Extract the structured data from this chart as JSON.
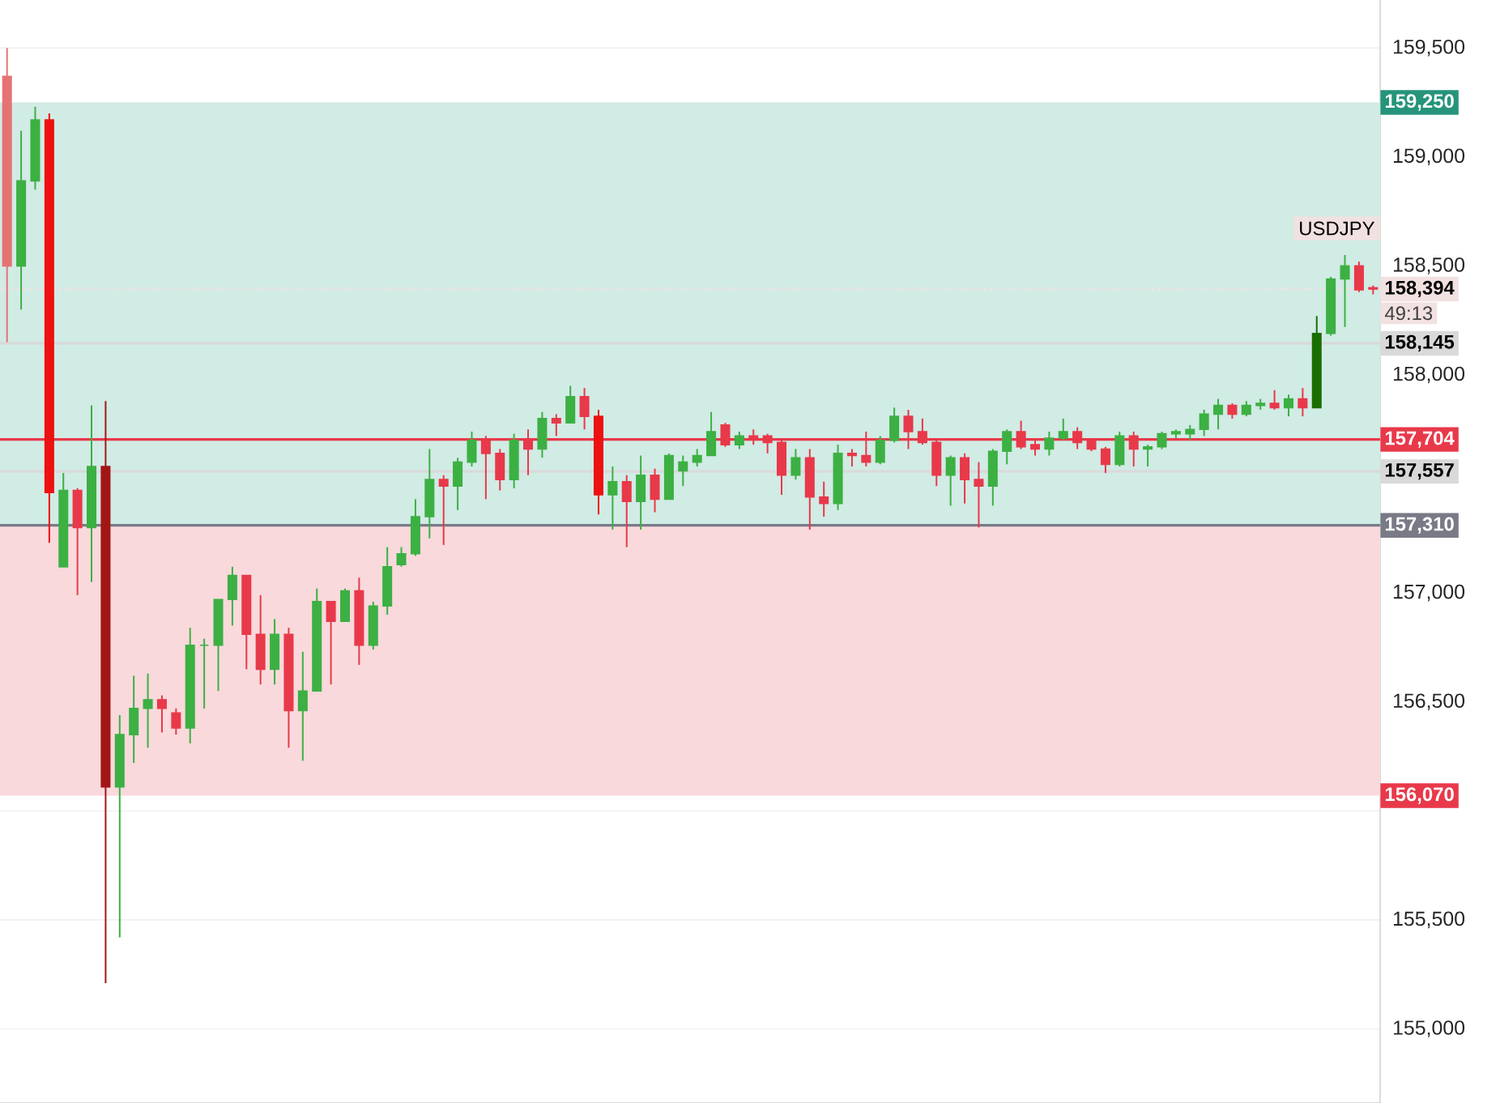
{
  "chart_data": {
    "type": "candlestick",
    "categories": [
      null,
      null,
      null,
      null,
      null,
      null,
      null,
      null,
      null,
      null,
      null,
      null,
      null,
      null,
      null,
      null,
      null,
      null,
      null,
      null,
      null,
      null,
      null,
      null,
      null,
      null,
      null,
      null,
      null,
      null,
      null,
      null,
      null,
      null,
      null,
      null,
      null,
      null,
      null,
      null,
      null,
      null,
      null,
      null,
      null,
      null,
      null,
      null,
      null,
      null,
      null,
      null,
      null,
      null,
      null,
      null,
      null,
      null,
      null,
      null,
      null,
      null,
      null,
      null,
      null,
      null,
      null,
      null,
      null,
      null,
      null,
      null,
      null,
      null,
      null,
      null,
      null,
      null,
      null,
      null,
      null,
      null,
      null,
      null,
      null,
      null,
      null,
      null,
      null,
      null,
      null,
      null,
      null,
      null,
      null,
      null,
      null,
      null
    ],
    "ohlc": [
      [
        159370,
        159500,
        158150,
        158500
      ],
      [
        158500,
        159120,
        158300,
        158890
      ],
      [
        158890,
        159230,
        158850,
        159170
      ],
      [
        159170,
        159200,
        157230,
        157460
      ],
      [
        157120,
        157550,
        157120,
        157470
      ],
      [
        157470,
        157480,
        156990,
        157300
      ],
      [
        157300,
        157860,
        157050,
        157580
      ],
      [
        157580,
        157880,
        155210,
        156110
      ],
      [
        156110,
        156440,
        155420,
        156350
      ],
      [
        156350,
        156620,
        156220,
        156470
      ],
      [
        156470,
        156630,
        156290,
        156510
      ],
      [
        156510,
        156530,
        156360,
        156470
      ],
      [
        156450,
        156470,
        156350,
        156380
      ],
      [
        156380,
        156840,
        156310,
        156760
      ],
      [
        156760,
        156790,
        156470,
        156760
      ],
      [
        156760,
        156970,
        156550,
        156970
      ],
      [
        156970,
        157120,
        156850,
        157080
      ],
      [
        157080,
        157080,
        156650,
        156810
      ],
      [
        156810,
        156990,
        156580,
        156650
      ],
      [
        156650,
        156880,
        156580,
        156810
      ],
      [
        156810,
        156840,
        156290,
        156460
      ],
      [
        156460,
        156730,
        156230,
        156550
      ],
      [
        156550,
        157020,
        156550,
        156960
      ],
      [
        156960,
        156960,
        156580,
        156870
      ],
      [
        156870,
        157020,
        156870,
        157010
      ],
      [
        157010,
        157070,
        156670,
        156760
      ],
      [
        156760,
        156960,
        156740,
        156940
      ],
      [
        156940,
        157210,
        156900,
        157120
      ],
      [
        157130,
        157210,
        157120,
        157180
      ],
      [
        157180,
        157430,
        157170,
        157350
      ],
      [
        157350,
        157660,
        157250,
        157520
      ],
      [
        157520,
        157540,
        157220,
        157490
      ],
      [
        157490,
        157620,
        157380,
        157600
      ],
      [
        157600,
        157740,
        157580,
        157700
      ],
      [
        157700,
        157720,
        157430,
        157640
      ],
      [
        157640,
        157660,
        157470,
        157520
      ],
      [
        157520,
        157730,
        157480,
        157700
      ],
      [
        157700,
        157750,
        157540,
        157660
      ],
      [
        157660,
        157830,
        157620,
        157800
      ],
      [
        157800,
        157820,
        157720,
        157780
      ],
      [
        157780,
        157950,
        157780,
        157900
      ],
      [
        157900,
        157940,
        157750,
        157810
      ],
      [
        157810,
        157840,
        157360,
        157450
      ],
      [
        157450,
        157580,
        157290,
        157510
      ],
      [
        157510,
        157540,
        157210,
        157420
      ],
      [
        157420,
        157630,
        157290,
        157540
      ],
      [
        157540,
        157570,
        157370,
        157430
      ],
      [
        157430,
        157640,
        157430,
        157630
      ],
      [
        157560,
        157630,
        157490,
        157600
      ],
      [
        157600,
        157660,
        157580,
        157630
      ],
      [
        157630,
        157830,
        157630,
        157740
      ],
      [
        157770,
        157780,
        157670,
        157680
      ],
      [
        157680,
        157740,
        157660,
        157720
      ],
      [
        157720,
        157750,
        157680,
        157710
      ],
      [
        157720,
        157730,
        157640,
        157690
      ],
      [
        157690,
        157710,
        157450,
        157540
      ],
      [
        157540,
        157660,
        157520,
        157620
      ],
      [
        157620,
        157660,
        157290,
        157440
      ],
      [
        157440,
        157510,
        157350,
        157410
      ],
      [
        157410,
        157680,
        157380,
        157640
      ],
      [
        157640,
        157660,
        157580,
        157630
      ],
      [
        157630,
        157740,
        157580,
        157600
      ],
      [
        157600,
        157720,
        157590,
        157700
      ],
      [
        157700,
        157850,
        157690,
        157810
      ],
      [
        157810,
        157840,
        157660,
        157740
      ],
      [
        157740,
        157800,
        157680,
        157690
      ],
      [
        157690,
        157700,
        157490,
        157540
      ],
      [
        157540,
        157630,
        157400,
        157620
      ],
      [
        157620,
        157640,
        157410,
        157520
      ],
      [
        157520,
        157600,
        157300,
        157490
      ],
      [
        157490,
        157660,
        157400,
        157650
      ],
      [
        157650,
        157750,
        157590,
        157740
      ],
      [
        157740,
        157790,
        157660,
        157670
      ],
      [
        157680,
        157710,
        157630,
        157660
      ],
      [
        157660,
        157740,
        157630,
        157710
      ],
      [
        157710,
        157800,
        157700,
        157740
      ],
      [
        157740,
        157760,
        157660,
        157690
      ],
      [
        157700,
        157710,
        157650,
        157660
      ],
      [
        157660,
        157670,
        157550,
        157590
      ],
      [
        157590,
        157740,
        157580,
        157720
      ],
      [
        157720,
        157740,
        157580,
        157660
      ],
      [
        157660,
        157680,
        157580,
        157670
      ],
      [
        157670,
        157740,
        157660,
        157730
      ],
      [
        157730,
        157750,
        157710,
        157740
      ],
      [
        157730,
        157770,
        157700,
        157750
      ],
      [
        157750,
        157840,
        157720,
        157820
      ],
      [
        157820,
        157890,
        157750,
        157860
      ],
      [
        157860,
        157870,
        157800,
        157820
      ],
      [
        157820,
        157880,
        157810,
        157860
      ],
      [
        157860,
        157890,
        157840,
        157870
      ],
      [
        157870,
        157930,
        157840,
        157850
      ],
      [
        157850,
        157910,
        157810,
        157890
      ],
      [
        157890,
        157940,
        157810,
        157850
      ],
      [
        157850,
        158270,
        157850,
        158190
      ],
      [
        158190,
        158450,
        158180,
        158440
      ],
      [
        158440,
        158550,
        158220,
        158500
      ],
      [
        158500,
        158520,
        158380,
        158390
      ],
      [
        158400,
        158410,
        158370,
        158394
      ]
    ],
    "colors": [
      "#e57373",
      "#3cb043",
      "#3cb043",
      "#ee1111",
      "#3cb043",
      "#e8394a",
      "#3cb043",
      "#a31616",
      "#3cb043",
      "#3cb043",
      "#3cb043",
      "#e8394a",
      "#e8394a",
      "#3cb043",
      "#3cb043",
      "#3cb043",
      "#3cb043",
      "#e8394a",
      "#e8394a",
      "#3cb043",
      "#e8394a",
      "#3cb043",
      "#3cb043",
      "#e8394a",
      "#3cb043",
      "#e8394a",
      "#3cb043",
      "#3cb043",
      "#3cb043",
      "#3cb043",
      "#3cb043",
      "#e8394a",
      "#3cb043",
      "#3cb043",
      "#e8394a",
      "#e8394a",
      "#3cb043",
      "#e8394a",
      "#3cb043",
      "#e8394a",
      "#3cb043",
      "#e8394a",
      "#ee1111",
      "#3cb043",
      "#e8394a",
      "#3cb043",
      "#e8394a",
      "#3cb043",
      "#3cb043",
      "#3cb043",
      "#3cb043",
      "#e8394a",
      "#3cb043",
      "#e8394a",
      "#e8394a",
      "#e8394a",
      "#3cb043",
      "#e8394a",
      "#e8394a",
      "#3cb043",
      "#e8394a",
      "#e8394a",
      "#3cb043",
      "#3cb043",
      "#e8394a",
      "#e8394a",
      "#e8394a",
      "#3cb043",
      "#e8394a",
      "#e8394a",
      "#3cb043",
      "#3cb043",
      "#e8394a",
      "#e8394a",
      "#3cb043",
      "#3cb043",
      "#e8394a",
      "#e8394a",
      "#e8394a",
      "#3cb043",
      "#e8394a",
      "#3cb043",
      "#3cb043",
      "#3cb043",
      "#3cb043",
      "#3cb043",
      "#3cb043",
      "#e8394a",
      "#3cb043",
      "#3cb043",
      "#e8394a",
      "#3cb043",
      "#e8394a",
      "#1a6e00",
      "#3cb043",
      "#3cb043",
      "#e8394a",
      "#e8394a"
    ],
    "ylim": [
      154660,
      159720
    ],
    "yticks": [
      {
        "value": 155000,
        "label": "155,000"
      },
      {
        "value": 155500,
        "label": "155,500"
      },
      {
        "value": 156000,
        "label": null
      },
      {
        "value": 156500,
        "label": "156,500"
      },
      {
        "value": 157000,
        "label": "157,000"
      },
      {
        "value": 157500,
        "label": null
      },
      {
        "value": 158000,
        "label": "158,000"
      },
      {
        "value": 158500,
        "label": "158,500"
      },
      {
        "value": 159000,
        "label": "159,000"
      },
      {
        "value": 159500,
        "label": "159,500"
      }
    ],
    "tick_labels": "y",
    "grid": "y",
    "bands": [
      {
        "axis": "y",
        "from": 157310,
        "to": 159250,
        "label": "159,250",
        "color": "#d1ebe5"
      },
      {
        "axis": "y",
        "from": 157310,
        "to": 156070,
        "label": "156,070",
        "color": "#f9d9dc"
      }
    ],
    "ref_lines": [
      {
        "axis": "y",
        "value": 158394,
        "label": "158,394",
        "color": "#f2e1e1",
        "line_style": "dotted"
      },
      {
        "axis": "y",
        "value": 158145,
        "label": "158,145",
        "color": "#d9d9d9",
        "line_style": "solid"
      },
      {
        "axis": "y",
        "value": 157704,
        "label": "157,704",
        "color": "#e8394a",
        "line_style": "solid"
      },
      {
        "axis": "y",
        "value": 157557,
        "label": "157,557",
        "color": "#d9d9d9",
        "line_style": "solid"
      },
      {
        "axis": "y",
        "value": 157310,
        "label": "157,310",
        "color": "#787b86",
        "line_style": "solid"
      }
    ],
    "annotations": [
      {
        "text": "USDJPY",
        "y": 158394
      },
      "49:13"
    ]
  }
}
